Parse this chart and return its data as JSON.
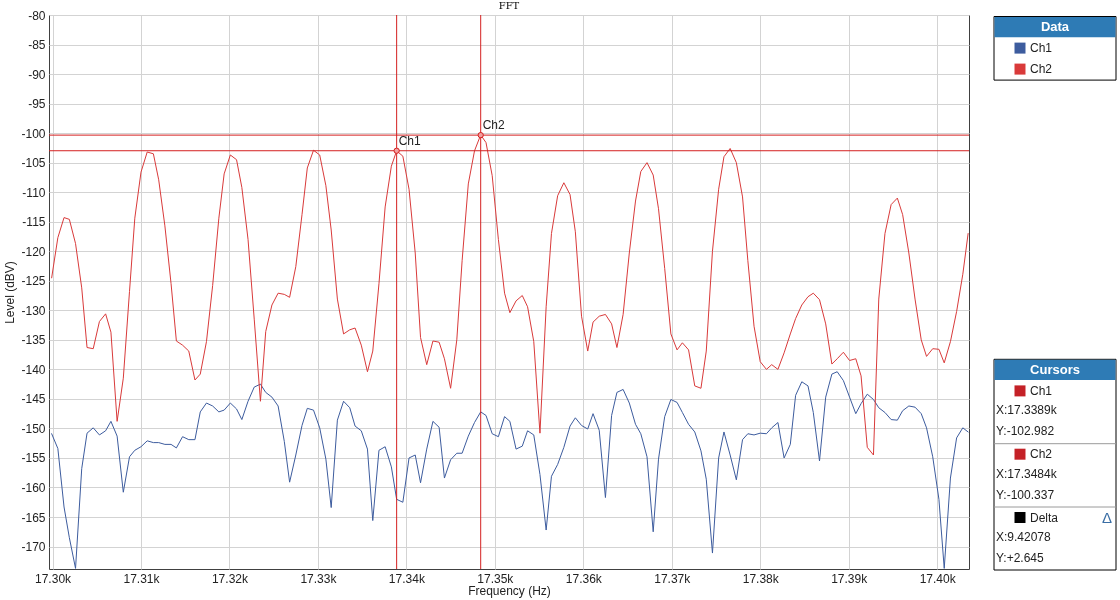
{
  "chart_data": [
    {
      "type": "line",
      "title": "FFT",
      "xlabel": "Frequency (Hz)",
      "ylabel": "Level (dBV)",
      "legend_title": "Data",
      "legend": "top right",
      "grid": true,
      "xlim": [
        17299.6,
        17403.6
      ],
      "ylim": [
        -173.8,
        -80
      ],
      "xticks": [
        {
          "value": 17300,
          "label": "17.30k"
        },
        {
          "value": 17310,
          "label": "17.31k"
        },
        {
          "value": 17320,
          "label": "17.32k"
        },
        {
          "value": 17330,
          "label": "17.33k"
        },
        {
          "value": 17340,
          "label": "17.34k"
        },
        {
          "value": 17350,
          "label": "17.35k"
        },
        {
          "value": 17360,
          "label": "17.36k"
        },
        {
          "value": 17370,
          "label": "17.37k"
        },
        {
          "value": 17380,
          "label": "17.38k"
        },
        {
          "value": 17390,
          "label": "17.39k"
        },
        {
          "value": 17400,
          "label": "17.40k"
        }
      ],
      "yticks": [
        -80,
        -85,
        -90,
        -95,
        -100,
        -105,
        -110,
        -115,
        -120,
        -125,
        -130,
        -135,
        -140,
        -145,
        -150,
        -155,
        -160,
        -165,
        -170
      ],
      "x": [
        17299.9,
        17300.6,
        17301.3,
        17301.9,
        17302.6,
        17303.3,
        17303.9,
        17304.6,
        17305.3,
        17306.0,
        17306.6,
        17307.3,
        17308.0,
        17308.7,
        17309.3,
        17310.0,
        17310.7,
        17311.4,
        17312.0,
        17312.7,
        17313.4,
        17314.0,
        17314.7,
        17315.4,
        17316.1,
        17316.7,
        17317.4,
        17318.1,
        17318.8,
        17319.4,
        17320.1,
        17320.8,
        17321.4,
        17322.1,
        17322.8,
        17323.5,
        17324.1,
        17324.8,
        17325.5,
        17326.2,
        17326.8,
        17327.5,
        17328.2,
        17328.8,
        17329.5,
        17330.2,
        17330.9,
        17331.5,
        17332.2,
        17332.9,
        17333.6,
        17334.2,
        17334.9,
        17335.6,
        17336.2,
        17336.9,
        17337.6,
        17338.3,
        17338.9,
        17339.6,
        17340.3,
        17341.0,
        17341.6,
        17342.3,
        17343.0,
        17343.7,
        17344.3,
        17345.0,
        17345.7,
        17346.3,
        17347.0,
        17347.7,
        17348.4,
        17349.0,
        17349.7,
        17350.4,
        17351.1,
        17351.7,
        17352.4,
        17353.1,
        17353.7,
        17354.4,
        17355.1,
        17355.8,
        17356.4,
        17357.1,
        17357.8,
        17358.5,
        17359.1,
        17359.8,
        17360.5,
        17361.1,
        17361.8,
        17362.5,
        17363.2,
        17363.8,
        17364.5,
        17365.2,
        17365.9,
        17366.5,
        17367.2,
        17367.9,
        17368.5,
        17369.2,
        17369.9,
        17370.6,
        17371.2,
        17371.9,
        17372.6,
        17373.3,
        17373.9,
        17374.6,
        17375.3,
        17375.9,
        17376.6,
        17377.3,
        17378.0,
        17378.6,
        17379.3,
        17380.0,
        17380.7,
        17381.3,
        17382.0,
        17382.7,
        17383.4,
        17384.0,
        17384.7,
        17385.4,
        17386.0,
        17386.7,
        17387.4,
        17388.1,
        17388.7,
        17389.4,
        17390.1,
        17390.8,
        17391.4,
        17392.1,
        17392.8,
        17393.4,
        17394.1,
        17394.8,
        17395.5,
        17396.1,
        17396.8,
        17397.5,
        17398.2,
        17398.8,
        17399.5,
        17400.2,
        17400.8,
        17401.5,
        17402.2,
        17402.9,
        17403.5
      ],
      "series": [
        {
          "name": "Ch1",
          "color": "#3d5c9e",
          "values": [
            -150.9,
            -153.4,
            -163.3,
            -168.5,
            -173.7,
            -156.8,
            -150.8,
            -149.9,
            -151.1,
            -150.4,
            -148.8,
            -151.3,
            -160.8,
            -154.8,
            -153.7,
            -153.1,
            -152.1,
            -152.4,
            -152.4,
            -152.7,
            -152.7,
            -153.3,
            -151.4,
            -151.9,
            -151.9,
            -147.2,
            -145.7,
            -146.2,
            -147.2,
            -146.9,
            -145.7,
            -146.7,
            -148.5,
            -145.4,
            -143.0,
            -142.5,
            -143.9,
            -144.7,
            -146.2,
            -152.2,
            -159.1,
            -154.5,
            -149.5,
            -146.6,
            -146.9,
            -149.9,
            -155.2,
            -163.4,
            -148.6,
            -145.4,
            -146.5,
            -149.6,
            -150.4,
            -153.5,
            -165.6,
            -153.7,
            -153.1,
            -156.5,
            -162.0,
            -162.5,
            -155.0,
            -154.5,
            -159.2,
            -153.5,
            -148.8,
            -149.8,
            -158.4,
            -155.3,
            -154.2,
            -154.2,
            -151.3,
            -149.0,
            -147.2,
            -147.8,
            -150.9,
            -151.4,
            -148.0,
            -148.8,
            -153.5,
            -153.0,
            -150.4,
            -151.1,
            -157.8,
            -167.2,
            -158.1,
            -156.1,
            -153.2,
            -149.6,
            -148.2,
            -149.5,
            -150.1,
            -147.5,
            -150.3,
            -161.7,
            -147.8,
            -143.9,
            -143.4,
            -145.7,
            -149.3,
            -150.9,
            -154.8,
            -167.5,
            -155.2,
            -148.0,
            -145.1,
            -145.6,
            -147.3,
            -149.3,
            -150.6,
            -153.8,
            -158.6,
            -171.1,
            -155.0,
            -150.6,
            -154.5,
            -158.7,
            -151.9,
            -150.9,
            -151.1,
            -150.8,
            -150.9,
            -149.9,
            -149.0,
            -155.0,
            -152.7,
            -144.4,
            -142.1,
            -142.8,
            -147.3,
            -155.5,
            -144.7,
            -140.8,
            -140.4,
            -141.9,
            -144.7,
            -147.5,
            -145.8,
            -144.2,
            -145.1,
            -146.5,
            -147.3,
            -148.5,
            -148.6,
            -147.0,
            -146.2,
            -146.4,
            -147.5,
            -149.9,
            -154.8,
            -162.0,
            -173.7,
            -158.4,
            -151.6,
            -149.9,
            -150.6
          ]
        },
        {
          "name": "Ch2",
          "color": "#d93a3a",
          "values": [
            -124.5,
            -117.7,
            -114.3,
            -114.6,
            -118.7,
            -126.2,
            -136.3,
            -136.5,
            -131.9,
            -130.6,
            -133.7,
            -148.8,
            -141.5,
            -126.8,
            -114.4,
            -106.6,
            -103.2,
            -103.5,
            -107.9,
            -115.7,
            -125.5,
            -135.2,
            -135.9,
            -136.9,
            -141.8,
            -140.8,
            -135.3,
            -125.8,
            -114.4,
            -106.9,
            -103.7,
            -104.5,
            -109.2,
            -118.0,
            -131.5,
            -145.4,
            -133.6,
            -129.1,
            -127.1,
            -127.3,
            -127.8,
            -122.6,
            -113.8,
            -105.9,
            -102.9,
            -103.7,
            -108.9,
            -116.4,
            -128.1,
            -134.0,
            -133.3,
            -133.0,
            -135.9,
            -140.4,
            -136.9,
            -125.5,
            -112.5,
            -105.6,
            -103.0,
            -103.9,
            -109.5,
            -120.3,
            -134.6,
            -139.2,
            -135.2,
            -135.4,
            -138.2,
            -143.2,
            -135.0,
            -121.6,
            -108.6,
            -103.0,
            -100.3,
            -101.6,
            -107.2,
            -118.0,
            -127.1,
            -130.4,
            -128.4,
            -127.5,
            -129.4,
            -135.3,
            -150.8,
            -129.4,
            -117.0,
            -110.6,
            -108.4,
            -110.4,
            -116.7,
            -131.0,
            -136.9,
            -132.0,
            -131.0,
            -130.7,
            -132.3,
            -136.3,
            -130.7,
            -120.3,
            -111.5,
            -106.5,
            -105.0,
            -107.1,
            -112.8,
            -122.9,
            -134.0,
            -136.7,
            -135.5,
            -136.7,
            -142.8,
            -143.2,
            -136.9,
            -120.0,
            -109.5,
            -104.0,
            -102.6,
            -105.0,
            -110.8,
            -121.6,
            -132.7,
            -138.7,
            -140.0,
            -139.2,
            -140.0,
            -137.2,
            -134.0,
            -131.4,
            -129.1,
            -127.7,
            -127.1,
            -128.2,
            -132.3,
            -139.1,
            -138.2,
            -137.1,
            -138.5,
            -138.2,
            -141.1,
            -153.2,
            -154.5,
            -128.1,
            -117.0,
            -112.1,
            -111.0,
            -113.8,
            -120.3,
            -128.1,
            -135.0,
            -137.8,
            -136.5,
            -136.6,
            -138.9,
            -135.3,
            -130.2,
            -123.9,
            -117.0
          ]
        }
      ],
      "ref_lines": [
        {
          "axis": "x",
          "value": 17338.9,
          "color": "#d42020"
        },
        {
          "axis": "x",
          "value": 17348.4,
          "color": "#d42020"
        },
        {
          "axis": "y",
          "value": -102.982,
          "color": "#d42020"
        },
        {
          "axis": "y",
          "value": -100.337,
          "color": "#d42020"
        }
      ],
      "annotations": [
        {
          "text": "Ch1",
          "x": 17338.9,
          "y": -102.982
        },
        {
          "text": "Ch2",
          "x": 17348.4,
          "y": -100.337
        }
      ]
    },
    {
      "type": "other",
      "title": "Cursors",
      "categories": [
        "Ch1",
        "Ch2",
        "Delta"
      ],
      "colors": [
        "#c42127",
        "#c42127",
        "#000000"
      ],
      "annotations": [
        "X:17.3389k",
        "Y:-102.982",
        "X:17.3484k",
        "Y:-100.337",
        "X:9.42078",
        "Y:+2.645",
        "Δ"
      ]
    }
  ]
}
